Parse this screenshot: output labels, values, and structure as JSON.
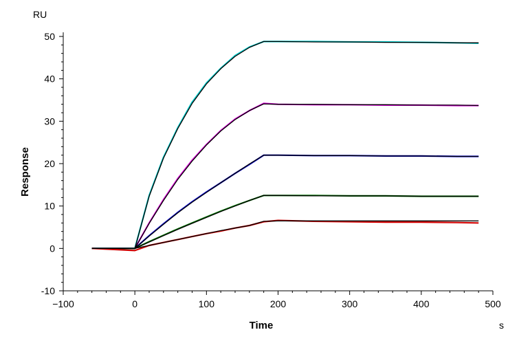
{
  "chart_data": {
    "type": "line",
    "title": "",
    "xlabel": "Time",
    "ylabel": "Response",
    "x_unit": "s",
    "y_unit": "RU",
    "xlim": [
      -100,
      500
    ],
    "ylim": [
      -10,
      50
    ],
    "xticks": [
      -100,
      0,
      100,
      200,
      300,
      400,
      500
    ],
    "yticks": [
      -10,
      0,
      10,
      20,
      30,
      40,
      50
    ],
    "grid": false,
    "legend": "none",
    "fit_color": "#000000",
    "series": [
      {
        "color": "#00c8c8",
        "x": [
          -60,
          0,
          20,
          40,
          60,
          80,
          100,
          120,
          140,
          160,
          180,
          200,
          250,
          300,
          350,
          400,
          450,
          480
        ],
        "y": [
          0,
          0,
          12.5,
          21.5,
          28.5,
          34.5,
          39.0,
          42.5,
          45.5,
          47.5,
          48.8,
          48.8,
          48.8,
          48.7,
          48.7,
          48.6,
          48.5,
          48.4
        ]
      },
      {
        "color": "#d800d8",
        "x": [
          -60,
          0,
          20,
          40,
          60,
          80,
          100,
          120,
          140,
          160,
          180,
          200,
          250,
          300,
          350,
          400,
          450,
          480
        ],
        "y": [
          0,
          0,
          6.0,
          11.5,
          16.5,
          20.8,
          24.5,
          27.8,
          30.5,
          32.5,
          34.2,
          34.0,
          33.9,
          33.9,
          33.8,
          33.8,
          33.7,
          33.7
        ]
      },
      {
        "color": "#0000d0",
        "x": [
          -60,
          0,
          20,
          40,
          60,
          80,
          100,
          120,
          140,
          160,
          180,
          200,
          250,
          300,
          350,
          400,
          450,
          480
        ],
        "y": [
          0,
          0,
          3.0,
          5.8,
          8.5,
          11.0,
          13.3,
          15.5,
          17.7,
          19.8,
          22.0,
          22.0,
          21.9,
          21.9,
          21.8,
          21.8,
          21.7,
          21.7
        ]
      },
      {
        "color": "#007000",
        "x": [
          -60,
          0,
          20,
          40,
          60,
          80,
          100,
          120,
          140,
          160,
          180,
          200,
          250,
          300,
          350,
          400,
          450,
          480
        ],
        "y": [
          0,
          0,
          1.6,
          3.1,
          4.6,
          6.0,
          7.4,
          8.8,
          10.1,
          11.3,
          12.5,
          12.5,
          12.5,
          12.4,
          12.4,
          12.3,
          12.3,
          12.3
        ]
      },
      {
        "color": "#d00000",
        "x": [
          -60,
          0,
          20,
          40,
          60,
          80,
          100,
          120,
          140,
          160,
          180,
          200,
          250,
          300,
          350,
          400,
          450,
          480
        ],
        "y": [
          0,
          -0.5,
          0.7,
          1.4,
          2.1,
          2.8,
          3.5,
          4.1,
          4.8,
          5.4,
          6.3,
          6.6,
          6.4,
          6.3,
          6.2,
          6.2,
          6.1,
          6.0
        ]
      }
    ],
    "fits": [
      {
        "x": [
          -60,
          0,
          20,
          40,
          60,
          80,
          100,
          120,
          140,
          160,
          180,
          200,
          250,
          300,
          350,
          400,
          450,
          480
        ],
        "y": [
          0,
          0,
          12.3,
          21.3,
          28.3,
          34.2,
          38.8,
          42.4,
          45.3,
          47.4,
          48.8,
          48.8,
          48.7,
          48.7,
          48.6,
          48.6,
          48.5,
          48.5
        ]
      },
      {
        "x": [
          -60,
          0,
          20,
          40,
          60,
          80,
          100,
          120,
          140,
          160,
          180,
          200,
          250,
          300,
          350,
          400,
          450,
          480
        ],
        "y": [
          0,
          0,
          5.9,
          11.3,
          16.3,
          20.6,
          24.4,
          27.7,
          30.4,
          32.5,
          34.1,
          34.0,
          34.0,
          33.9,
          33.9,
          33.8,
          33.8,
          33.7
        ]
      },
      {
        "x": [
          -60,
          0,
          20,
          40,
          60,
          80,
          100,
          120,
          140,
          160,
          180,
          200,
          250,
          300,
          350,
          400,
          450,
          480
        ],
        "y": [
          0,
          0,
          2.9,
          5.7,
          8.4,
          10.9,
          13.2,
          15.5,
          17.7,
          19.9,
          22.0,
          22.0,
          21.9,
          21.9,
          21.8,
          21.8,
          21.7,
          21.7
        ]
      },
      {
        "x": [
          -60,
          0,
          20,
          40,
          60,
          80,
          100,
          120,
          140,
          160,
          180,
          200,
          250,
          300,
          350,
          400,
          450,
          480
        ],
        "y": [
          0,
          0,
          1.5,
          3.0,
          4.5,
          5.9,
          7.3,
          8.7,
          10.0,
          11.3,
          12.5,
          12.5,
          12.4,
          12.4,
          12.4,
          12.3,
          12.3,
          12.3
        ]
      },
      {
        "x": [
          -60,
          0,
          20,
          40,
          60,
          80,
          100,
          120,
          140,
          160,
          180,
          200,
          250,
          300,
          350,
          400,
          450,
          480
        ],
        "y": [
          0,
          0,
          0.7,
          1.4,
          2.1,
          2.8,
          3.5,
          4.2,
          4.8,
          5.4,
          6.4,
          6.5,
          6.5,
          6.5,
          6.5,
          6.5,
          6.5,
          6.5
        ]
      }
    ]
  }
}
